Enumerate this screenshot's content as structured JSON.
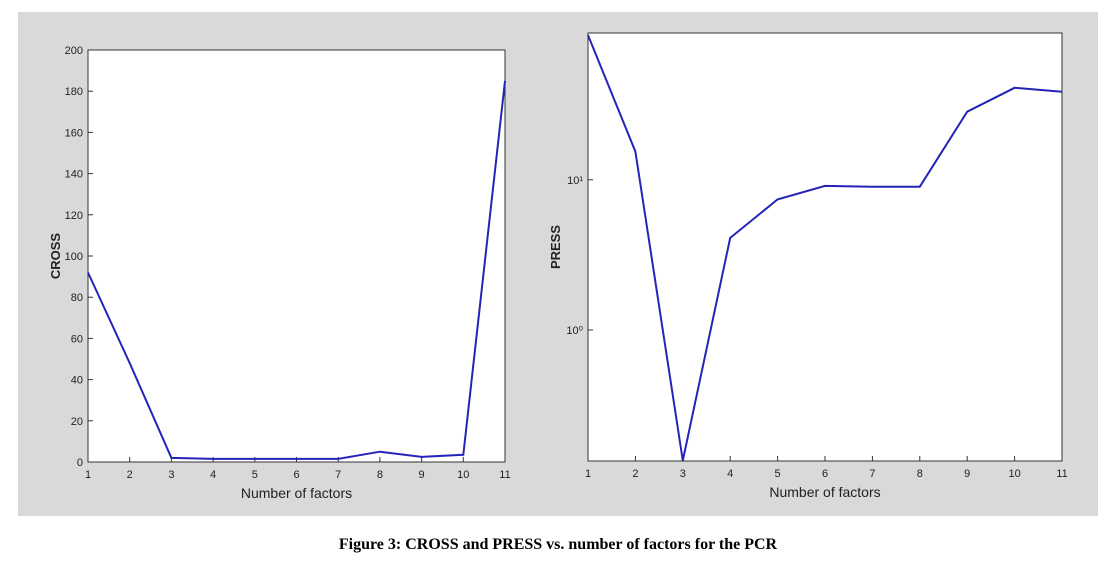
{
  "caption": "Figure 3: CROSS and PRESS vs. number of factors for the PCR",
  "chart_data": [
    {
      "type": "line",
      "xlabel": "Number of factors",
      "ylabel": "CROSS",
      "x": [
        1,
        2,
        3,
        4,
        5,
        6,
        7,
        8,
        9,
        10,
        11
      ],
      "values": [
        92,
        48,
        2,
        1.5,
        1.5,
        1.5,
        1.5,
        5,
        2.5,
        3.5,
        185
      ],
      "color": "#2424b8",
      "xlim": [
        1,
        11
      ],
      "xticks": [
        1,
        2,
        3,
        4,
        5,
        6,
        7,
        8,
        9,
        10,
        11
      ],
      "ylim": [
        0,
        200
      ],
      "yticks": [
        0,
        20,
        40,
        60,
        80,
        100,
        120,
        140,
        160,
        180,
        200
      ],
      "log_scale": false
    },
    {
      "type": "line",
      "xlabel": "Number of factors",
      "ylabel": "PRESS",
      "x": [
        1,
        2,
        3,
        4,
        5,
        6,
        7,
        8,
        9,
        10,
        11
      ],
      "values": [
        92,
        15.4,
        0.135,
        4.1,
        7.4,
        9.1,
        9,
        9,
        28.4,
        41,
        38.6
      ],
      "color": "#2424b8",
      "xlim": [
        1,
        11
      ],
      "xticks": [
        1,
        2,
        3,
        4,
        5,
        6,
        7,
        8,
        9,
        10,
        11
      ],
      "ylim": [
        0.134,
        95
      ],
      "yticks": [
        {
          "value": 1,
          "label": "10⁰"
        },
        {
          "value": 10,
          "label": "10¹"
        }
      ],
      "log_scale": true
    }
  ]
}
